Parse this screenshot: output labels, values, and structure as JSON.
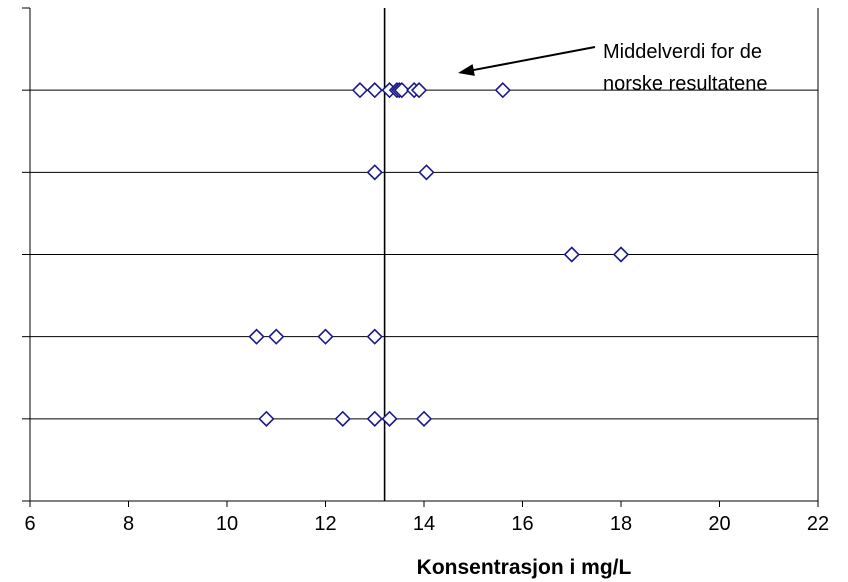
{
  "chart_data": {
    "type": "scatter",
    "title": "",
    "xlabel": "Konsentrasjon i mg/L",
    "ylabel": "",
    "xlim": [
      6,
      22
    ],
    "x_ticks": [
      6,
      8,
      10,
      12,
      14,
      16,
      18,
      20,
      22
    ],
    "y_levels": 5,
    "grid": "horizontal",
    "marker": "open-diamond",
    "marker_color": "#1a1a8c",
    "reference_line": {
      "x": 13.2,
      "color": "#000000"
    },
    "annotation": {
      "lines": [
        "Middelverdi for de",
        "norske resultatene"
      ],
      "points_to_x": 13.2
    },
    "series": [
      {
        "values": [
          12.7,
          13.0,
          13.3,
          13.45,
          13.5,
          13.55,
          13.8,
          13.9,
          15.6
        ]
      },
      {
        "values": [
          13.0,
          14.05
        ]
      },
      {
        "values": [
          17.0,
          18.0
        ]
      },
      {
        "values": [
          10.6,
          11.0,
          12.0,
          13.0
        ]
      },
      {
        "values": [
          10.8,
          12.35,
          13.0,
          13.3,
          14.0
        ]
      }
    ]
  }
}
